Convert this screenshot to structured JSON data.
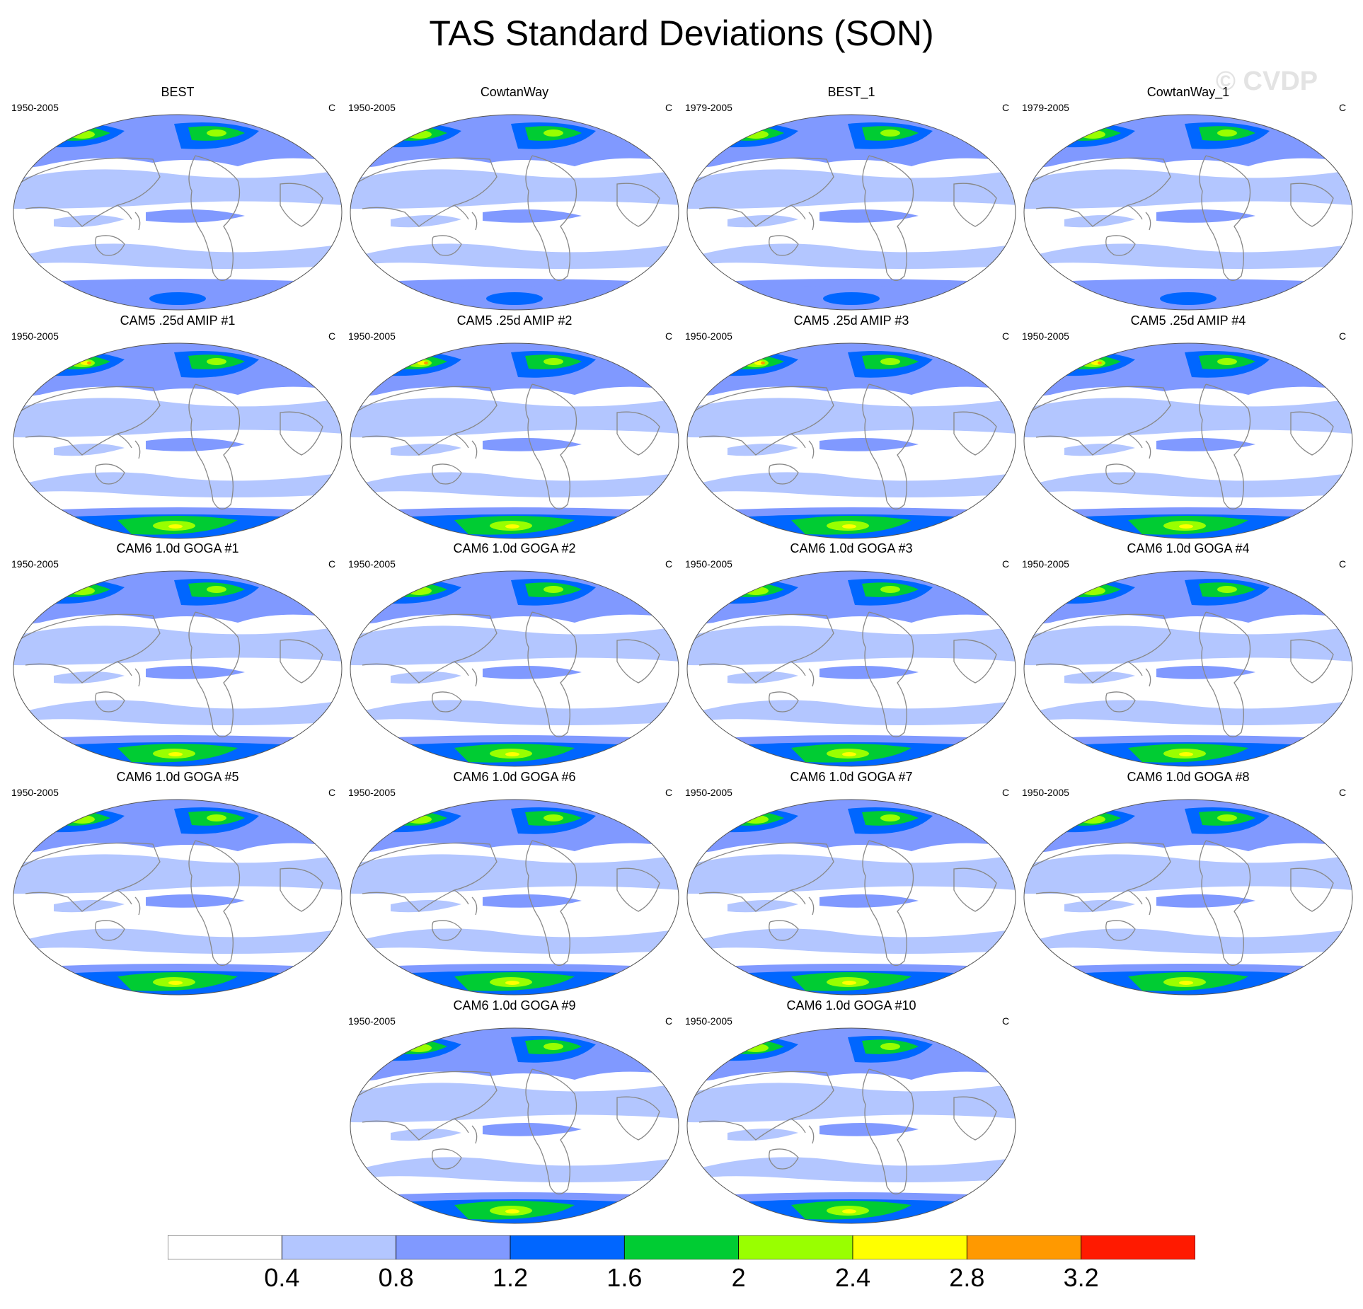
{
  "title": "TAS Standard Deviations (SON)",
  "watermark": "© CVDP",
  "colors": {
    "levels": [
      "#ffffff",
      "#b3c6ff",
      "#8099ff",
      "#0066ff",
      "#00cc33",
      "#99ff00",
      "#ffff00",
      "#ff9900",
      "#ff1a00"
    ],
    "coastline": "#888888",
    "border": "#555555"
  },
  "colorbar": {
    "labels": [
      "0.4",
      "0.8",
      "1.2",
      "1.6",
      "2",
      "2.4",
      "2.8",
      "3.2"
    ]
  },
  "panels": [
    {
      "title": "BEST",
      "left": "1950-2005",
      "right": "C",
      "polar": "weak"
    },
    {
      "title": "CowtanWay",
      "left": "1950-2005",
      "right": "C",
      "polar": "weak"
    },
    {
      "title": "BEST_1",
      "left": "1979-2005",
      "right": "C",
      "polar": "weak"
    },
    {
      "title": "CowtanWay_1",
      "left": "1979-2005",
      "right": "C",
      "polar": "weak"
    },
    {
      "title": "CAM5 .25d AMIP #1",
      "left": "1950-2005",
      "right": "C",
      "polar": "strong"
    },
    {
      "title": "CAM5 .25d AMIP #2",
      "left": "1950-2005",
      "right": "C",
      "polar": "strong"
    },
    {
      "title": "CAM5 .25d AMIP #3",
      "left": "1950-2005",
      "right": "C",
      "polar": "strong"
    },
    {
      "title": "CAM5 .25d AMIP #4",
      "left": "1950-2005",
      "right": "C",
      "polar": "strong"
    },
    {
      "title": "CAM6 1.0d GOGA #1",
      "left": "1950-2005",
      "right": "C",
      "polar": "medium"
    },
    {
      "title": "CAM6 1.0d GOGA #2",
      "left": "1950-2005",
      "right": "C",
      "polar": "medium"
    },
    {
      "title": "CAM6 1.0d GOGA #3",
      "left": "1950-2005",
      "right": "C",
      "polar": "medium"
    },
    {
      "title": "CAM6 1.0d GOGA #4",
      "left": "1950-2005",
      "right": "C",
      "polar": "medium"
    },
    {
      "title": "CAM6 1.0d GOGA #5",
      "left": "1950-2005",
      "right": "C",
      "polar": "medium"
    },
    {
      "title": "CAM6 1.0d GOGA #6",
      "left": "1950-2005",
      "right": "C",
      "polar": "medium"
    },
    {
      "title": "CAM6 1.0d GOGA #7",
      "left": "1950-2005",
      "right": "C",
      "polar": "medium"
    },
    {
      "title": "CAM6 1.0d GOGA #8",
      "left": "1950-2005",
      "right": "C",
      "polar": "medium"
    },
    {
      "title": "CAM6 1.0d GOGA #9",
      "left": "1950-2005",
      "right": "C",
      "polar": "medium"
    },
    {
      "title": "CAM6 1.0d GOGA #10",
      "left": "1950-2005",
      "right": "C",
      "polar": "medium"
    }
  ]
}
